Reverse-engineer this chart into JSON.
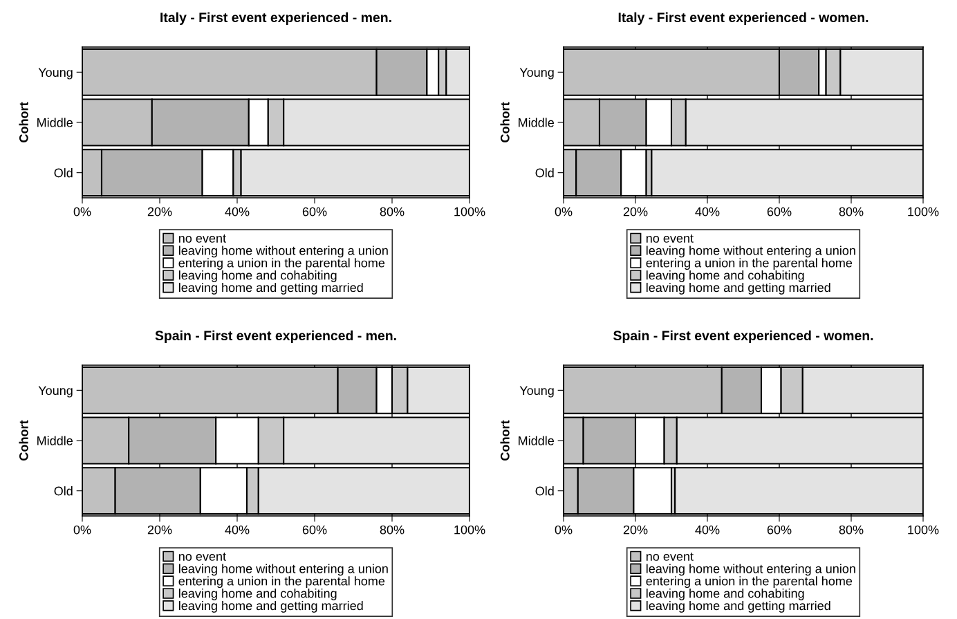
{
  "chart_data": [
    {
      "type": "bar",
      "title": "Italy - First event experienced - men.",
      "ylabel": "Cohort",
      "orientation": "horizontal",
      "stacked": true,
      "categories": [
        "Young",
        "Middle",
        "Old"
      ],
      "xlim": [
        0,
        100
      ],
      "xticks": [
        {
          "value": 0,
          "label": "0%"
        },
        {
          "value": 20,
          "label": "20%"
        },
        {
          "value": 40,
          "label": "40%"
        },
        {
          "value": 60,
          "label": "60%"
        },
        {
          "value": 80,
          "label": "80%"
        },
        {
          "value": 100,
          "label": "100%"
        }
      ],
      "grid": false,
      "legend": "bottom",
      "series": [
        {
          "name": "no event",
          "color": "#c0c0c0",
          "values": [
            76,
            18,
            5
          ]
        },
        {
          "name": "leaving home without entering a union",
          "color": "#b2b2b2",
          "values": [
            13,
            25,
            26
          ]
        },
        {
          "name": "entering a union in the parental home",
          "color": "#ffffff",
          "values": [
            3,
            5,
            8
          ]
        },
        {
          "name": "leaving home and cohabiting",
          "color": "#c8c8c8",
          "values": [
            2,
            4,
            2
          ]
        },
        {
          "name": "leaving home and getting married",
          "color": "#e3e3e3",
          "values": [
            6,
            48,
            59
          ]
        }
      ]
    },
    {
      "type": "bar",
      "title": "Italy - First event experienced - women.",
      "ylabel": "Cohort",
      "orientation": "horizontal",
      "stacked": true,
      "categories": [
        "Young",
        "Middle",
        "Old"
      ],
      "xlim": [
        0,
        100
      ],
      "xticks": [
        {
          "value": 0,
          "label": "0%"
        },
        {
          "value": 20,
          "label": "20%"
        },
        {
          "value": 40,
          "label": "40%"
        },
        {
          "value": 60,
          "label": "60%"
        },
        {
          "value": 80,
          "label": "80%"
        },
        {
          "value": 100,
          "label": "100%"
        }
      ],
      "grid": "x",
      "legend": "bottom",
      "series": [
        {
          "name": "no event",
          "color": "#c0c0c0",
          "values": [
            60,
            10,
            3.5
          ]
        },
        {
          "name": "leaving home without entering a union",
          "color": "#b2b2b2",
          "values": [
            11,
            13,
            12.5
          ]
        },
        {
          "name": "entering a union in the parental home",
          "color": "#ffffff",
          "values": [
            2,
            7,
            7
          ]
        },
        {
          "name": "leaving home and cohabiting",
          "color": "#c8c8c8",
          "values": [
            4,
            4,
            1.5
          ]
        },
        {
          "name": "leaving home and getting married",
          "color": "#e3e3e3",
          "values": [
            23,
            66,
            75.5
          ]
        }
      ]
    },
    {
      "type": "bar",
      "title": "Spain - First event experienced - men.",
      "ylabel": "Cohort",
      "orientation": "horizontal",
      "stacked": true,
      "categories": [
        "Young",
        "Middle",
        "Old"
      ],
      "xlim": [
        0,
        100
      ],
      "xticks": [
        {
          "value": 0,
          "label": "0%"
        },
        {
          "value": 20,
          "label": "20%"
        },
        {
          "value": 40,
          "label": "40%"
        },
        {
          "value": 60,
          "label": "60%"
        },
        {
          "value": 80,
          "label": "80%"
        },
        {
          "value": 100,
          "label": "100%"
        }
      ],
      "grid": "x",
      "legend": "bottom",
      "series": [
        {
          "name": "no event",
          "color": "#c0c0c0",
          "values": [
            66,
            12,
            8.5
          ]
        },
        {
          "name": "leaving home without entering a union",
          "color": "#b2b2b2",
          "values": [
            10,
            22.5,
            22
          ]
        },
        {
          "name": "entering a union in the parental home",
          "color": "#ffffff",
          "values": [
            4,
            11,
            12
          ]
        },
        {
          "name": "leaving home and cohabiting",
          "color": "#c8c8c8",
          "values": [
            4,
            6.5,
            3
          ]
        },
        {
          "name": "leaving home and getting married",
          "color": "#e3e3e3",
          "values": [
            16,
            48,
            54.5
          ]
        }
      ]
    },
    {
      "type": "bar",
      "title": "Spain - First event experienced - women.",
      "ylabel": "Cohort",
      "orientation": "horizontal",
      "stacked": true,
      "categories": [
        "Young",
        "Middle",
        "Old"
      ],
      "xlim": [
        0,
        100
      ],
      "xticks": [
        {
          "value": 0,
          "label": "0%"
        },
        {
          "value": 20,
          "label": "20%"
        },
        {
          "value": 40,
          "label": "40%"
        },
        {
          "value": 60,
          "label": "60%"
        },
        {
          "value": 80,
          "label": "80%"
        },
        {
          "value": 100,
          "label": "100%"
        }
      ],
      "grid": "x",
      "legend": "bottom",
      "series": [
        {
          "name": "no event",
          "color": "#c0c0c0",
          "values": [
            44,
            5.5,
            4
          ]
        },
        {
          "name": "leaving home without entering a union",
          "color": "#b2b2b2",
          "values": [
            11,
            14.5,
            15.5
          ]
        },
        {
          "name": "entering a union in the parental home",
          "color": "#ffffff",
          "values": [
            5.5,
            8,
            10.5
          ]
        },
        {
          "name": "leaving home and cohabiting",
          "color": "#c8c8c8",
          "values": [
            6,
            3.5,
            1
          ]
        },
        {
          "name": "leaving home and getting married",
          "color": "#e3e3e3",
          "values": [
            33.5,
            68.5,
            69
          ]
        }
      ]
    }
  ]
}
